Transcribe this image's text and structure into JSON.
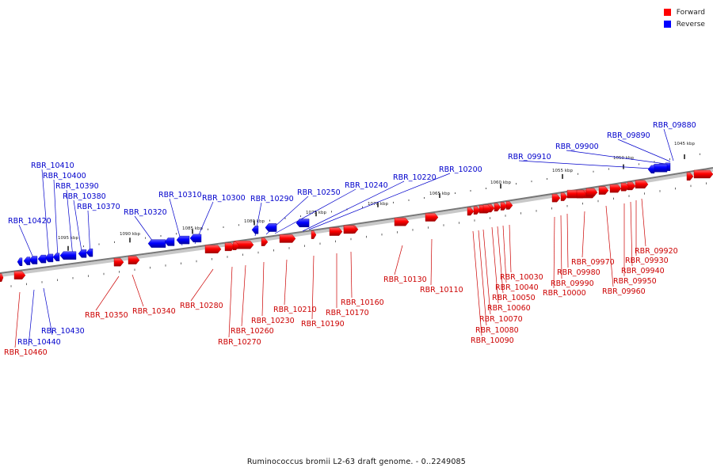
{
  "legend": {
    "forward_label": "Forward",
    "reverse_label": "Reverse",
    "forward_color": "#ff0000",
    "reverse_color": "#0000ff"
  },
  "footer": {
    "caption": "Ruminococcus bromii L2-63 draft genome. - 0..2249085"
  },
  "scale": {
    "unit": "kbp",
    "ticks": [
      {
        "label": "1095 kbp"
      },
      {
        "label": "1090 kbp"
      },
      {
        "label": "1085 kbp"
      },
      {
        "label": "1080 kbp"
      },
      {
        "label": "1075 kbp"
      },
      {
        "label": "1070 kbp"
      },
      {
        "label": "1065 kbp"
      },
      {
        "label": "1060 kbp"
      },
      {
        "label": "1055 kbp"
      },
      {
        "label": "1050 kbp"
      },
      {
        "label": "1045 kbp"
      }
    ]
  },
  "genes": [
    {
      "label": "RBR_09880",
      "strand": "reverse"
    },
    {
      "label": "RBR_09890",
      "strand": "reverse"
    },
    {
      "label": "RBR_09900",
      "strand": "reverse"
    },
    {
      "label": "RBR_09910",
      "strand": "reverse"
    },
    {
      "label": "RBR_09920",
      "strand": "forward"
    },
    {
      "label": "RBR_09930",
      "strand": "forward"
    },
    {
      "label": "RBR_09940",
      "strand": "forward"
    },
    {
      "label": "RBR_09950",
      "strand": "forward"
    },
    {
      "label": "RBR_09960",
      "strand": "forward"
    },
    {
      "label": "RBR_09970",
      "strand": "forward"
    },
    {
      "label": "RBR_09980",
      "strand": "forward"
    },
    {
      "label": "RBR_09990",
      "strand": "forward"
    },
    {
      "label": "RBR_10000",
      "strand": "forward"
    },
    {
      "label": "RBR_10030",
      "strand": "forward"
    },
    {
      "label": "RBR_10040",
      "strand": "forward"
    },
    {
      "label": "RBR_10050",
      "strand": "forward"
    },
    {
      "label": "RBR_10060",
      "strand": "forward"
    },
    {
      "label": "RBR_10070",
      "strand": "forward"
    },
    {
      "label": "RBR_10080",
      "strand": "forward"
    },
    {
      "label": "RBR_10090",
      "strand": "forward"
    },
    {
      "label": "RBR_10110",
      "strand": "forward"
    },
    {
      "label": "RBR_10130",
      "strand": "forward"
    },
    {
      "label": "RBR_10160",
      "strand": "forward"
    },
    {
      "label": "RBR_10170",
      "strand": "forward"
    },
    {
      "label": "RBR_10190",
      "strand": "forward"
    },
    {
      "label": "RBR_10200",
      "strand": "reverse"
    },
    {
      "label": "RBR_10210",
      "strand": "forward"
    },
    {
      "label": "RBR_10220",
      "strand": "reverse"
    },
    {
      "label": "RBR_10230",
      "strand": "forward"
    },
    {
      "label": "RBR_10240",
      "strand": "reverse"
    },
    {
      "label": "RBR_10250",
      "strand": "reverse"
    },
    {
      "label": "RBR_10260",
      "strand": "forward"
    },
    {
      "label": "RBR_10270",
      "strand": "forward"
    },
    {
      "label": "RBR_10280",
      "strand": "forward"
    },
    {
      "label": "RBR_10290",
      "strand": "reverse"
    },
    {
      "label": "RBR_10300",
      "strand": "reverse"
    },
    {
      "label": "RBR_10310",
      "strand": "reverse"
    },
    {
      "label": "RBR_10320",
      "strand": "reverse"
    },
    {
      "label": "RBR_10340",
      "strand": "forward"
    },
    {
      "label": "RBR_10350",
      "strand": "forward"
    },
    {
      "label": "RBR_10370",
      "strand": "reverse"
    },
    {
      "label": "RBR_10380",
      "strand": "reverse"
    },
    {
      "label": "RBR_10390",
      "strand": "reverse"
    },
    {
      "label": "RBR_10400",
      "strand": "reverse"
    },
    {
      "label": "RBR_10410",
      "strand": "reverse"
    },
    {
      "label": "RBR_10420",
      "strand": "reverse"
    },
    {
      "label": "RBR_10430",
      "strand": "reverse"
    },
    {
      "label": "RBR_10440",
      "strand": "reverse"
    },
    {
      "label": "RBR_10460",
      "strand": "forward"
    }
  ]
}
